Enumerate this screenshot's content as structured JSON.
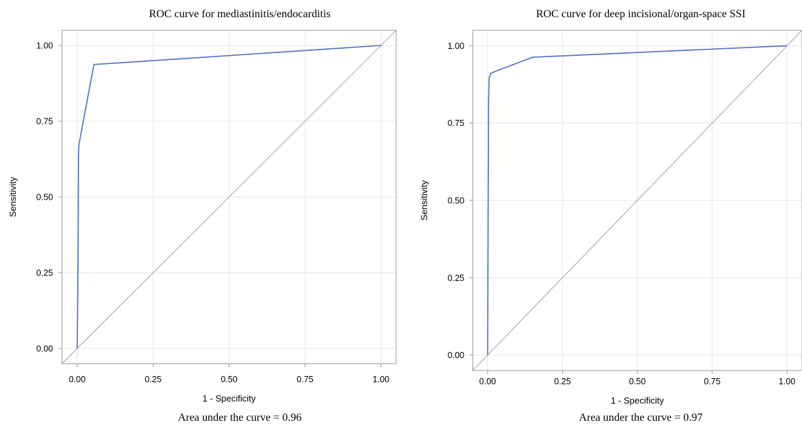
{
  "chart_data": [
    {
      "type": "line",
      "title": "ROC curve for mediastinitis/endocarditis",
      "xlabel": "1 - Specificity",
      "ylabel": "Sensitivity",
      "caption": "Area under the curve = 0.96",
      "xlim": [
        -0.05,
        1.05
      ],
      "ylim": [
        -0.05,
        1.05
      ],
      "xticks": [
        "0.00",
        "0.25",
        "0.50",
        "0.75",
        "1.00"
      ],
      "yticks": [
        "0.00",
        "0.25",
        "0.50",
        "0.75",
        "1.00"
      ],
      "grid": true,
      "legend": "none",
      "series": [
        {
          "color": "#4a6fc2",
          "points": [
            [
              0.0,
              0.0
            ],
            [
              0.003,
              0.3
            ],
            [
              0.004,
              0.63
            ],
            [
              0.006,
              0.675
            ],
            [
              0.055,
              0.937
            ],
            [
              1.0,
              1.0
            ]
          ]
        }
      ],
      "reference_line": {
        "from": [
          -0.05,
          -0.05
        ],
        "to": [
          1.05,
          1.05
        ],
        "color": "#b5b5b5"
      }
    },
    {
      "type": "line",
      "title": "ROC curve for deep incisional/organ-space SSI",
      "xlabel": "1 - Specificity",
      "ylabel": "Sensitivity",
      "caption": "Area under the curve = 0.97",
      "xlim": [
        -0.05,
        1.05
      ],
      "ylim": [
        -0.05,
        1.05
      ],
      "xticks": [
        "0.00",
        "0.25",
        "0.50",
        "0.75",
        "1.00"
      ],
      "yticks": [
        "0.00",
        "0.25",
        "0.50",
        "0.75",
        "1.00"
      ],
      "grid": true,
      "legend": "none",
      "series": [
        {
          "color": "#4a6fc2",
          "points": [
            [
              0.0,
              0.0
            ],
            [
              0.002,
              0.5
            ],
            [
              0.003,
              0.8
            ],
            [
              0.005,
              0.895
            ],
            [
              0.01,
              0.91
            ],
            [
              0.02,
              0.915
            ],
            [
              0.15,
              0.963
            ],
            [
              1.0,
              1.0
            ]
          ]
        }
      ],
      "reference_line": {
        "from": [
          -0.05,
          -0.05
        ],
        "to": [
          1.05,
          1.05
        ],
        "color": "#b5b5b5"
      }
    }
  ]
}
